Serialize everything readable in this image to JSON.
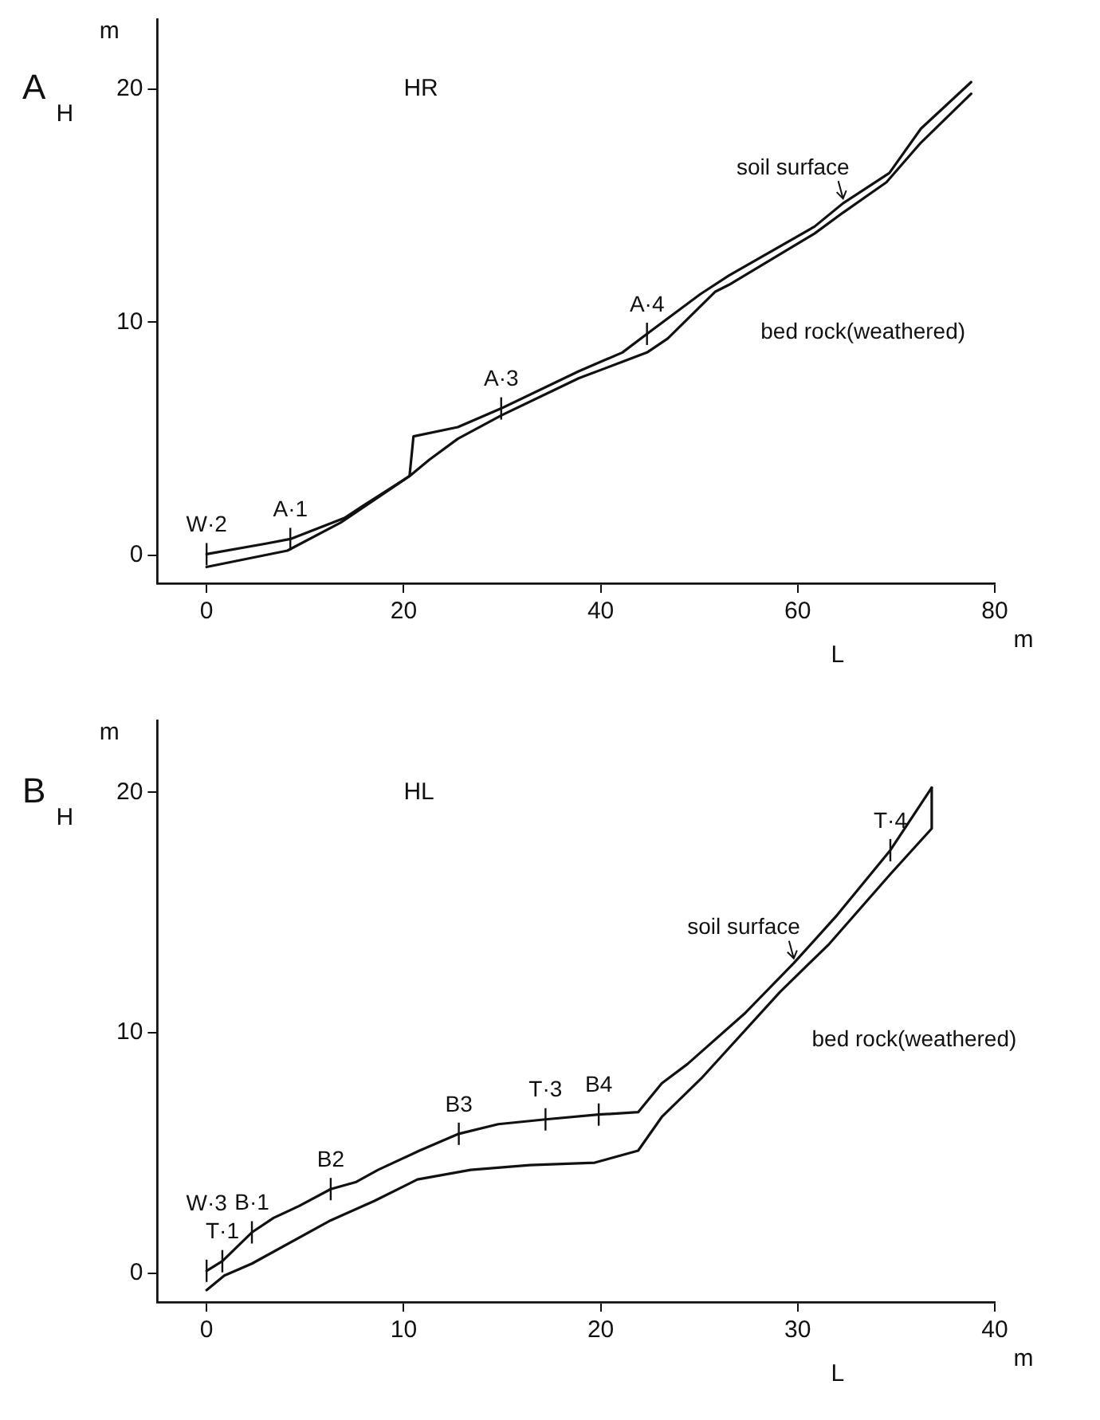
{
  "chart_data": [
    {
      "type": "line",
      "title": "A",
      "subtitle": "HR",
      "xlabel": "L",
      "ylabel": "H",
      "xlim": [
        -5,
        80
      ],
      "xticks": [
        0,
        20,
        40,
        60,
        80
      ],
      "ylim": [
        -1.2,
        23
      ],
      "yticks": [
        0,
        10,
        20
      ],
      "grid": false,
      "legend": false,
      "marker": "none",
      "line_style": "solid",
      "series": [
        {
          "color": "#111111",
          "x": [
            0,
            6,
            8.5,
            14,
            15.8,
            20.6,
            21,
            25.5,
            27.7,
            29.9,
            37.8,
            42.2,
            44.7,
            50.1,
            53,
            61.7,
            64.6,
            69.3,
            72.5,
            77.6
          ],
          "values": [
            0.05,
            0.5,
            0.7,
            1.6,
            2.1,
            3.4,
            5.1,
            5.5,
            5.9,
            6.3,
            7.9,
            8.7,
            9.5,
            11.2,
            12,
            14.1,
            15.1,
            16.4,
            18.3,
            20.3
          ]
        },
        {
          "color": "#111111",
          "x": [
            0,
            8.2,
            13.6,
            20.6,
            22.6,
            25.5,
            29.9,
            37.8,
            42.2,
            44.7,
            46.8,
            51.6,
            53,
            61.7,
            64.6,
            69,
            72.5,
            77.6
          ],
          "values": [
            -0.5,
            0.2,
            1.4,
            3.4,
            4.1,
            5,
            6,
            7.6,
            8.3,
            8.7,
            9.3,
            11.3,
            11.6,
            13.8,
            14.7,
            16,
            17.7,
            19.8
          ]
        }
      ],
      "annotations": [
        "m",
        "m",
        {
          "text": "W·2",
          "x": 0,
          "y": 0.05
        },
        {
          "text": "A·1",
          "x": 8.5,
          "y": 0.7
        },
        {
          "text": "A·3",
          "x": 29.9,
          "y": 6.3
        },
        {
          "text": "A·4",
          "x": 44.7,
          "y": 9.5
        },
        {
          "text": "soil surface",
          "x": 64.6,
          "y": 15.1
        },
        {
          "text": "bed rock(weathered)",
          "x": 53,
          "y": 11.6
        }
      ]
    },
    {
      "type": "line",
      "title": "B",
      "subtitle": "HL",
      "xlabel": "L",
      "ylabel": "H",
      "xlim": [
        -2.5,
        40
      ],
      "xticks": [
        0,
        10,
        20,
        30,
        40
      ],
      "ylim": [
        -1.2,
        23
      ],
      "yticks": [
        0,
        10,
        20
      ],
      "grid": false,
      "legend": false,
      "marker": "none",
      "line_style": "solid",
      "series": [
        {
          "color": "#111111",
          "x": [
            0,
            0.8,
            2.3,
            3.4,
            4.7,
            6.3,
            7.6,
            8.7,
            10.8,
            12.8,
            14.8,
            17.2,
            19.9,
            21.9,
            23.1,
            24.4,
            27.3,
            29.8,
            32,
            34.7,
            36.8
          ],
          "values": [
            0.1,
            0.5,
            1.7,
            2.3,
            2.8,
            3.5,
            3.8,
            4.3,
            5.1,
            5.8,
            6.2,
            6.4,
            6.6,
            6.7,
            7.9,
            8.7,
            10.8,
            12.9,
            14.9,
            17.6,
            20.2
          ]
        },
        {
          "color": "#111111",
          "x": [
            0,
            0.9,
            2.3,
            6.3,
            8.5,
            10.7,
            13.4,
            16.4,
            19.7,
            21.9,
            23.1,
            25.1,
            29.1,
            31.6,
            34.7,
            36.8,
            36.8
          ],
          "values": [
            -0.7,
            -0.1,
            0.4,
            2.2,
            3,
            3.9,
            4.3,
            4.5,
            4.6,
            5.1,
            6.5,
            8.1,
            11.7,
            13.7,
            16.6,
            18.5,
            20.2
          ]
        }
      ],
      "annotations": [
        "m",
        "m",
        {
          "text": "T·1",
          "x": 0.8,
          "y": 0.5
        },
        {
          "text": "W·3",
          "x": 0,
          "y": 0.1
        },
        {
          "text": "B·1",
          "x": 2.3,
          "y": 1.7
        },
        {
          "text": "B2",
          "x": 6.3,
          "y": 3.5
        },
        {
          "text": "B3",
          "x": 12.8,
          "y": 5.8
        },
        {
          "text": "T·3",
          "x": 17.2,
          "y": 6.4
        },
        {
          "text": "B4",
          "x": 19.9,
          "y": 6.6
        },
        {
          "text": "T·4",
          "x": 34.7,
          "y": 17.6
        },
        {
          "text": "soil surface",
          "x": 29.8,
          "y": 12.9
        },
        {
          "text": "bed rock(weathered)",
          "x": 29.1,
          "y": 11.7
        }
      ]
    }
  ]
}
